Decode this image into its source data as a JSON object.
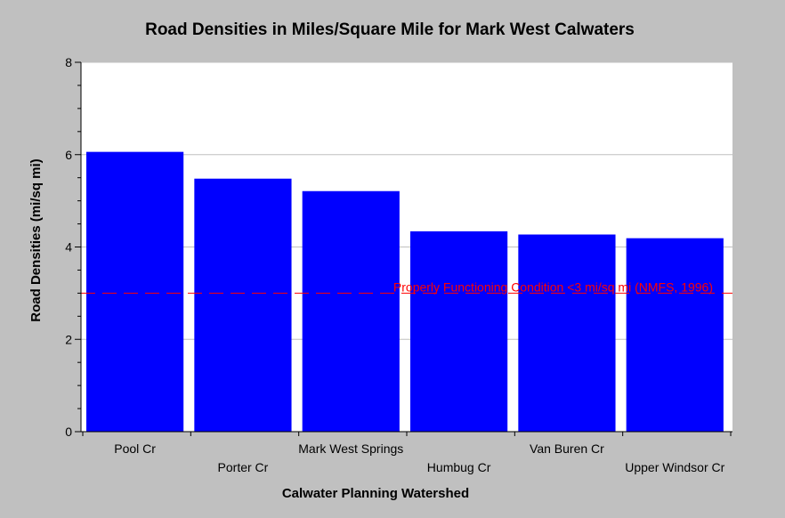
{
  "chart_data": {
    "type": "bar",
    "title": "Road Densities in Miles/Square Mile for Mark West Calwaters",
    "xlabel": "Calwater Planning Watershed",
    "ylabel": "Road Densities (mi/sq mi)",
    "categories": [
      "Pool Cr",
      "Porter Cr",
      "Mark West Springs",
      "Humbug Cr",
      "Van Buren Cr",
      "Upper Windsor Cr"
    ],
    "values": [
      6.06,
      5.48,
      5.21,
      4.34,
      4.27,
      4.19
    ],
    "ylim": [
      0,
      8
    ],
    "yticks": [
      "0",
      "2",
      "4",
      "6",
      "8"
    ],
    "grid": true,
    "reference_line": {
      "value": 3,
      "label": "Properly Functioning Condition <3 mi/sq mi (NMFS, 1996)",
      "color": "#ff0000"
    },
    "colors": {
      "bar": "#0000ff",
      "plot_background": "#ffffff",
      "page_background": "#c0c0c0",
      "grid": "#c0c0c0"
    }
  }
}
